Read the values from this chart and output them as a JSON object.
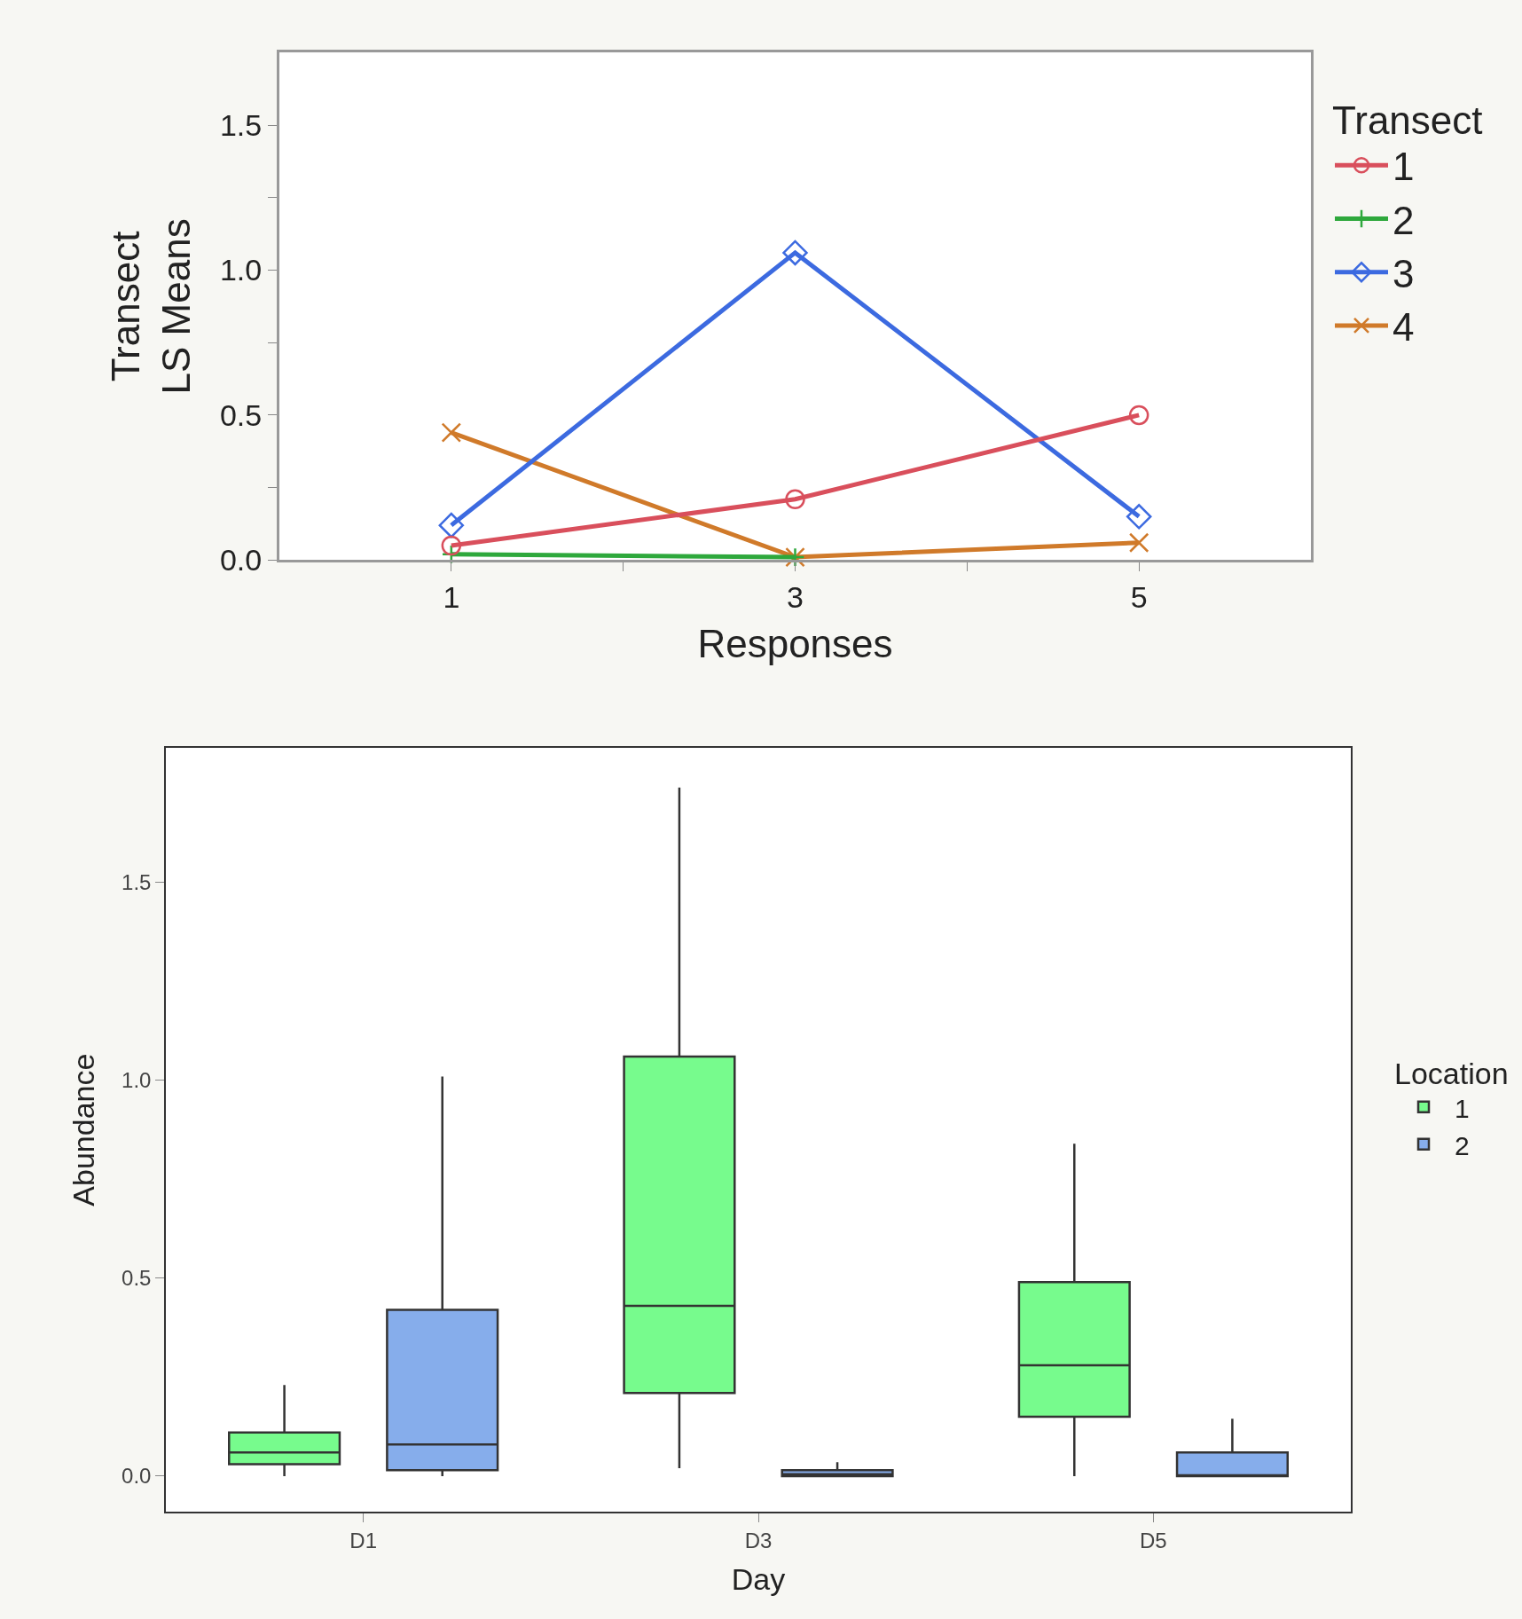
{
  "chart_data": [
    {
      "type": "line",
      "xlabel": "Responses",
      "ylabel": "Transect\nLS Means",
      "legend_title": "Transect",
      "legend": "right",
      "line_style": "solid",
      "x": [
        1,
        3,
        5
      ],
      "xlim": [
        0,
        6
      ],
      "xticks": [
        1,
        {
          "value": 2,
          "label": null
        },
        3,
        {
          "value": 4,
          "label": null
        },
        5
      ],
      "ylim": [
        0,
        1.75
      ],
      "yticks": [
        {
          "value": 0,
          "label": "0.0"
        },
        {
          "value": 0.25,
          "label": null
        },
        {
          "value": 0.5,
          "label": "0.5"
        },
        {
          "value": 0.75,
          "label": null
        },
        {
          "value": 1,
          "label": "1.0"
        },
        {
          "value": 1.25,
          "label": null
        },
        {
          "value": 1.5,
          "label": "1.5"
        }
      ],
      "series": [
        {
          "name": "1",
          "color": "#d94f5c",
          "marker": "circle",
          "values": [
            0.05,
            0.21,
            0.5
          ]
        },
        {
          "name": "2",
          "color": "#2ea83c",
          "marker": "cross",
          "values": [
            0.02,
            0.01,
            null
          ]
        },
        {
          "name": "3",
          "color": "#3c6ae0",
          "marker": "diamond",
          "values": [
            0.12,
            1.06,
            0.15
          ]
        },
        {
          "name": "4",
          "color": "#d07a2a",
          "marker": "x",
          "values": [
            0.44,
            0.01,
            0.06
          ]
        }
      ]
    },
    {
      "type": "box",
      "xlabel": "Day",
      "ylabel": "Abundance",
      "legend_title": "Location",
      "legend": "right",
      "categories": [
        "D1",
        "D3",
        "D5"
      ],
      "ylim": [
        -0.09,
        1.84
      ],
      "yticks": [
        {
          "value": 0,
          "label": "0.0"
        },
        {
          "value": 0.5,
          "label": "0.5"
        },
        {
          "value": 1,
          "label": "1.0"
        },
        {
          "value": 1.5,
          "label": "1.5"
        }
      ],
      "series": [
        {
          "name": "1",
          "color": "#77fb8d",
          "boxes": [
            {
              "low": 0,
              "q1": 0.03,
              "median": 0.06,
              "q3": 0.11,
              "high": 0.23
            },
            {
              "low": 0.02,
              "q1": 0.21,
              "median": 0.43,
              "q3": 1.06,
              "high": 1.74
            },
            {
              "low": 0,
              "q1": 0.15,
              "median": 0.28,
              "q3": 0.49,
              "high": 0.84
            }
          ]
        },
        {
          "name": "2",
          "color": "#86adeb",
          "boxes": [
            {
              "low": 0,
              "q1": 0.015,
              "median": 0.08,
              "q3": 0.42,
              "high": 1.01
            },
            {
              "low": 0,
              "q1": 0,
              "median": 0.005,
              "q3": 0.015,
              "high": 0.035
            },
            {
              "low": 0,
              "q1": 0,
              "median": 0,
              "q3": 0.06,
              "high": 0.145
            }
          ]
        }
      ]
    }
  ]
}
